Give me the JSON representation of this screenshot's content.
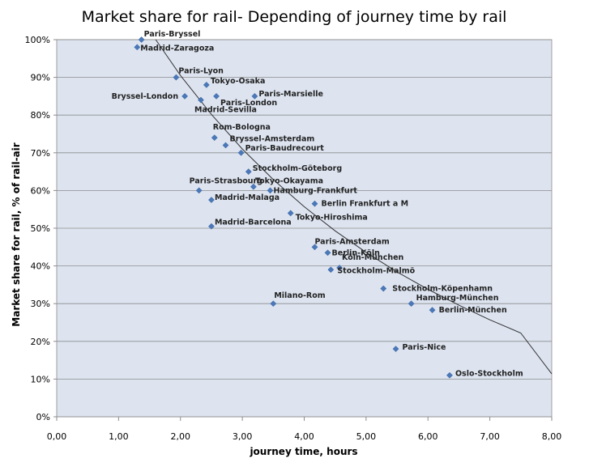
{
  "chart_data": {
    "type": "scatter",
    "title": "Market share for rail- Depending of journey time by rail",
    "xlabel": "journey time, hours",
    "ylabel": "Market share for rail, % of rail-air",
    "xlim": [
      0,
      8
    ],
    "ylim": [
      0,
      100
    ],
    "grid": true,
    "x_ticks": [
      "0,00",
      "1,00",
      "2,00",
      "3,00",
      "4,00",
      "5,00",
      "6,00",
      "7,00",
      "8,00"
    ],
    "y_ticks": [
      "0%",
      "10%",
      "20%",
      "30%",
      "40%",
      "50%",
      "60%",
      "70%",
      "80%",
      "90%",
      "100%"
    ],
    "points": [
      {
        "label": "Paris-Bryssel",
        "x": 1.37,
        "y": 100
      },
      {
        "label": "Madrid-Zaragoza",
        "x": 1.3,
        "y": 98
      },
      {
        "label": "Paris-Lyon",
        "x": 1.93,
        "y": 90
      },
      {
        "label": "Tokyo-Osaka",
        "x": 2.42,
        "y": 88
      },
      {
        "label": "Bryssel-London",
        "x": 2.07,
        "y": 85
      },
      {
        "label": "Paris-London",
        "x": 2.58,
        "y": 85
      },
      {
        "label": "Paris-Marsielle",
        "x": 3.2,
        "y": 85
      },
      {
        "label": "Madrid-Sevilla",
        "x": 2.33,
        "y": 84
      },
      {
        "label": "Rom-Bologna",
        "x": 2.55,
        "y": 74
      },
      {
        "label": "Bryssel-Amsterdam",
        "x": 2.73,
        "y": 72
      },
      {
        "label": "Paris-Baudrecourt",
        "x": 2.98,
        "y": 70
      },
      {
        "label": "Stockholm-Göteborg",
        "x": 3.1,
        "y": 65
      },
      {
        "label": "Tokyo-Okayama",
        "x": 3.18,
        "y": 61
      },
      {
        "label": "Paris-Strasbourg",
        "x": 2.3,
        "y": 60
      },
      {
        "label": "Hamburg-Frankfurt",
        "x": 3.45,
        "y": 60
      },
      {
        "label": "Madrid-Malaga",
        "x": 2.5,
        "y": 57.5
      },
      {
        "label": "Berlin Frankfurt a M",
        "x": 4.17,
        "y": 56.5
      },
      {
        "label": "Tokyo-Hiroshima",
        "x": 3.78,
        "y": 54
      },
      {
        "label": "Madrid-Barcelona",
        "x": 2.5,
        "y": 50.5
      },
      {
        "label": "Paris-Amsterdam",
        "x": 4.17,
        "y": 45
      },
      {
        "label": "Berlin-Köln",
        "x": 4.38,
        "y": 43.5
      },
      {
        "label": "Köln-München",
        "x": 4.57,
        "y": 39.5
      },
      {
        "label": "Stockholm-Malmö",
        "x": 4.43,
        "y": 39
      },
      {
        "label": "Stockholm-Köpenhamn",
        "x": 5.28,
        "y": 34
      },
      {
        "label": "Milano-Rom",
        "x": 3.5,
        "y": 30
      },
      {
        "label": "Hamburg-München",
        "x": 5.73,
        "y": 30
      },
      {
        "label": "Berlin-München",
        "x": 6.07,
        "y": 28.3
      },
      {
        "label": "Paris-Nice",
        "x": 5.48,
        "y": 18
      },
      {
        "label": "Oslo-Stockholm",
        "x": 6.35,
        "y": 11
      }
    ],
    "trendline": {
      "type": "curve",
      "x": [
        1.6,
        2,
        2.5,
        3,
        3.5,
        4,
        4.5,
        5,
        5.5,
        6,
        6.5,
        7,
        7.5,
        8
      ],
      "y": [
        100,
        90.5,
        80.2,
        71.0,
        62.9,
        55.7,
        49.3,
        43.6,
        38.4,
        33.8,
        29.6,
        25.7,
        22.2,
        11.4
      ]
    }
  }
}
